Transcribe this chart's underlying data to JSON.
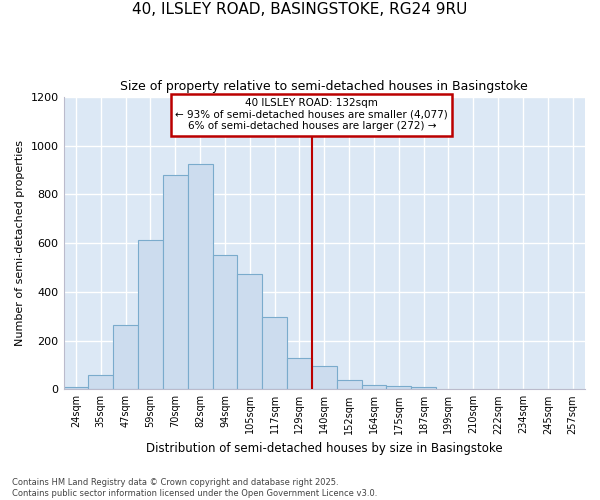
{
  "title1": "40, ILSLEY ROAD, BASINGSTOKE, RG24 9RU",
  "title2": "Size of property relative to semi-detached houses in Basingstoke",
  "xlabel": "Distribution of semi-detached houses by size in Basingstoke",
  "ylabel": "Number of semi-detached properties",
  "bar_labels": [
    "24sqm",
    "35sqm",
    "47sqm",
    "59sqm",
    "70sqm",
    "82sqm",
    "94sqm",
    "105sqm",
    "117sqm",
    "129sqm",
    "140sqm",
    "152sqm",
    "164sqm",
    "175sqm",
    "187sqm",
    "199sqm",
    "210sqm",
    "222sqm",
    "234sqm",
    "245sqm",
    "257sqm"
  ],
  "bar_values": [
    10,
    57,
    265,
    613,
    878,
    926,
    553,
    473,
    295,
    130,
    95,
    38,
    18,
    15,
    10,
    3,
    0,
    0,
    0,
    0,
    2
  ],
  "bar_color": "#ccdcee",
  "bar_edge_color": "#7aabcc",
  "figure_bg": "#ffffff",
  "axes_bg": "#dce8f5",
  "grid_color": "#ffffff",
  "vline_x": 9.5,
  "vline_color": "#bb0000",
  "annotation_title": "40 ILSLEY ROAD: 132sqm",
  "annotation_line1": "← 93% of semi-detached houses are smaller (4,077)",
  "annotation_line2": "6% of semi-detached houses are larger (272) →",
  "annotation_box_color": "#bb0000",
  "ylim": [
    0,
    1200
  ],
  "yticks": [
    0,
    200,
    400,
    600,
    800,
    1000,
    1200
  ],
  "footer": "Contains HM Land Registry data © Crown copyright and database right 2025.\nContains public sector information licensed under the Open Government Licence v3.0."
}
